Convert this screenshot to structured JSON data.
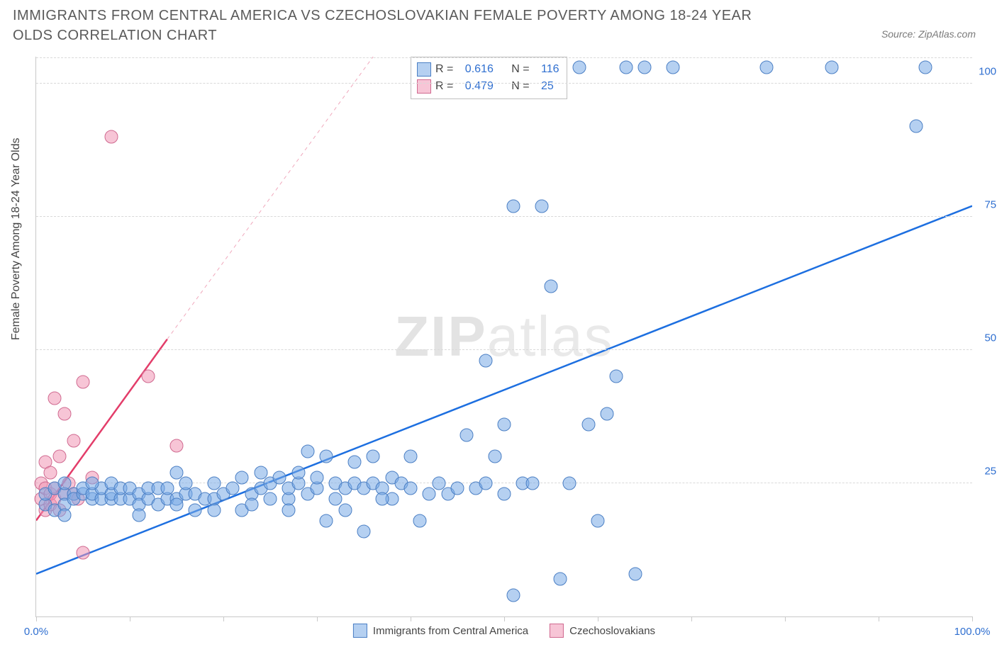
{
  "title": "IMMIGRANTS FROM CENTRAL AMERICA VS CZECHOSLOVAKIAN FEMALE POVERTY AMONG 18-24 YEAR OLDS CORRELATION CHART",
  "source": "Source: ZipAtlas.com",
  "ylabel": "Female Poverty Among 18-24 Year Olds",
  "watermark_a": "ZIP",
  "watermark_b": "atlas",
  "chart": {
    "type": "scatter",
    "xlim": [
      0,
      100
    ],
    "ylim": [
      0,
      105
    ],
    "y_ticks": [
      25,
      50,
      75,
      100
    ],
    "y_tick_labels": [
      "25.0%",
      "50.0%",
      "75.0%",
      "100.0%"
    ],
    "x_minor_ticks": [
      0,
      10,
      20,
      30,
      40,
      50,
      60,
      70,
      80,
      90,
      100
    ],
    "x_tick_labels": {
      "0": "0.0%",
      "100": "100.0%"
    },
    "grid_color": "#d9d9d9",
    "axis_color": "#c9c9c9",
    "background_color": "#ffffff"
  },
  "series": {
    "blue": {
      "label": "Immigrants from Central America",
      "R": "0.616",
      "N": "116",
      "marker_fill": "rgba(120,170,230,0.55)",
      "marker_stroke": "#4b7fc4",
      "marker_size": 17,
      "trend": {
        "x1": 0,
        "y1": 8,
        "x2": 100,
        "y2": 77,
        "color": "#1d6fe0",
        "width": 2.5,
        "dash": "none"
      },
      "trend_ext": null,
      "points": [
        [
          1,
          21
        ],
        [
          1,
          23
        ],
        [
          2,
          24
        ],
        [
          2,
          20
        ],
        [
          3,
          23
        ],
        [
          3,
          25
        ],
        [
          3,
          21
        ],
        [
          4,
          23
        ],
        [
          4,
          22
        ],
        [
          5,
          23
        ],
        [
          5,
          24
        ],
        [
          6,
          22
        ],
        [
          6,
          23
        ],
        [
          7,
          22
        ],
        [
          7,
          24
        ],
        [
          8,
          22
        ],
        [
          8,
          23
        ],
        [
          8,
          25
        ],
        [
          9,
          22
        ],
        [
          9,
          24
        ],
        [
          10,
          22
        ],
        [
          10,
          24
        ],
        [
          11,
          23
        ],
        [
          11,
          21
        ],
        [
          12,
          22
        ],
        [
          12,
          24
        ],
        [
          13,
          21
        ],
        [
          13,
          24
        ],
        [
          14,
          22
        ],
        [
          14,
          24
        ],
        [
          15,
          22
        ],
        [
          15,
          21
        ],
        [
          16,
          23
        ],
        [
          16,
          25
        ],
        [
          17,
          23
        ],
        [
          17,
          20
        ],
        [
          18,
          22
        ],
        [
          19,
          22
        ],
        [
          19,
          25
        ],
        [
          20,
          23
        ],
        [
          21,
          24
        ],
        [
          22,
          26
        ],
        [
          22,
          20
        ],
        [
          23,
          23
        ],
        [
          24,
          24
        ],
        [
          24,
          27
        ],
        [
          25,
          22
        ],
        [
          25,
          25
        ],
        [
          26,
          26
        ],
        [
          27,
          22
        ],
        [
          27,
          24
        ],
        [
          28,
          25
        ],
        [
          28,
          27
        ],
        [
          29,
          23
        ],
        [
          29,
          31
        ],
        [
          30,
          24
        ],
        [
          30,
          26
        ],
        [
          31,
          18
        ],
        [
          31,
          30
        ],
        [
          32,
          25
        ],
        [
          33,
          24
        ],
        [
          33,
          20
        ],
        [
          34,
          25
        ],
        [
          34,
          29
        ],
        [
          35,
          24
        ],
        [
          35,
          16
        ],
        [
          36,
          25
        ],
        [
          36,
          30
        ],
        [
          37,
          24
        ],
        [
          38,
          26
        ],
        [
          38,
          22
        ],
        [
          39,
          25
        ],
        [
          40,
          24
        ],
        [
          40,
          30
        ],
        [
          41,
          18
        ],
        [
          42,
          23
        ],
        [
          43,
          25
        ],
        [
          44,
          23
        ],
        [
          45,
          24
        ],
        [
          46,
          34
        ],
        [
          47,
          24
        ],
        [
          48,
          48
        ],
        [
          49,
          30
        ],
        [
          50,
          23
        ],
        [
          50,
          36
        ],
        [
          51,
          4
        ],
        [
          51,
          77
        ],
        [
          52,
          25
        ],
        [
          53,
          25
        ],
        [
          54,
          77
        ],
        [
          55,
          62
        ],
        [
          56,
          7
        ],
        [
          57,
          25
        ],
        [
          58,
          103
        ],
        [
          59,
          36
        ],
        [
          60,
          18
        ],
        [
          61,
          38
        ],
        [
          62,
          45
        ],
        [
          63,
          103
        ],
        [
          64,
          8
        ],
        [
          65,
          103
        ],
        [
          68,
          103
        ],
        [
          78,
          103
        ],
        [
          85,
          103
        ],
        [
          94,
          92
        ],
        [
          95,
          103
        ],
        [
          3,
          19
        ],
        [
          6,
          25
        ],
        [
          11,
          19
        ],
        [
          15,
          27
        ],
        [
          19,
          20
        ],
        [
          23,
          21
        ],
        [
          27,
          20
        ],
        [
          32,
          22
        ],
        [
          37,
          22
        ],
        [
          48,
          25
        ]
      ]
    },
    "pink": {
      "label": "Czechoslovakians",
      "R": "0.479",
      "N": "25",
      "marker_fill": "rgba(240,150,180,0.55)",
      "marker_stroke": "#d06a90",
      "marker_size": 17,
      "trend": {
        "x1": 0,
        "y1": 18,
        "x2": 14,
        "y2": 52,
        "color": "#e33d6a",
        "width": 2.5,
        "dash": "none"
      },
      "trend_ext": {
        "x1": 14,
        "y1": 52,
        "x2": 36,
        "y2": 105,
        "color": "#f0a8bc",
        "width": 1,
        "dash": "5,5"
      },
      "points": [
        [
          0.5,
          22
        ],
        [
          0.5,
          25
        ],
        [
          1,
          20
        ],
        [
          1,
          24
        ],
        [
          1,
          29
        ],
        [
          1.5,
          21
        ],
        [
          1.5,
          23
        ],
        [
          1.5,
          27
        ],
        [
          2,
          22
        ],
        [
          2,
          24
        ],
        [
          2,
          41
        ],
        [
          2.5,
          20
        ],
        [
          2.5,
          30
        ],
        [
          3,
          23
        ],
        [
          3,
          38
        ],
        [
          3.5,
          25
        ],
        [
          4,
          23
        ],
        [
          4,
          33
        ],
        [
          4.5,
          22
        ],
        [
          5,
          44
        ],
        [
          5,
          12
        ],
        [
          6,
          26
        ],
        [
          8,
          90
        ],
        [
          12,
          45
        ],
        [
          15,
          32
        ]
      ]
    }
  },
  "legend_top": {
    "rows": [
      {
        "swatch": "blue",
        "r_label": "R =",
        "r_val": "0.616",
        "n_label": "N =",
        "n_val": "116"
      },
      {
        "swatch": "pink",
        "r_label": "R =",
        "r_val": "0.479",
        "n_label": "N =",
        "n_val": "25"
      }
    ]
  },
  "legend_bottom": [
    {
      "swatch": "blue",
      "label": "Immigrants from Central America"
    },
    {
      "swatch": "pink",
      "label": "Czechoslovakians"
    }
  ]
}
